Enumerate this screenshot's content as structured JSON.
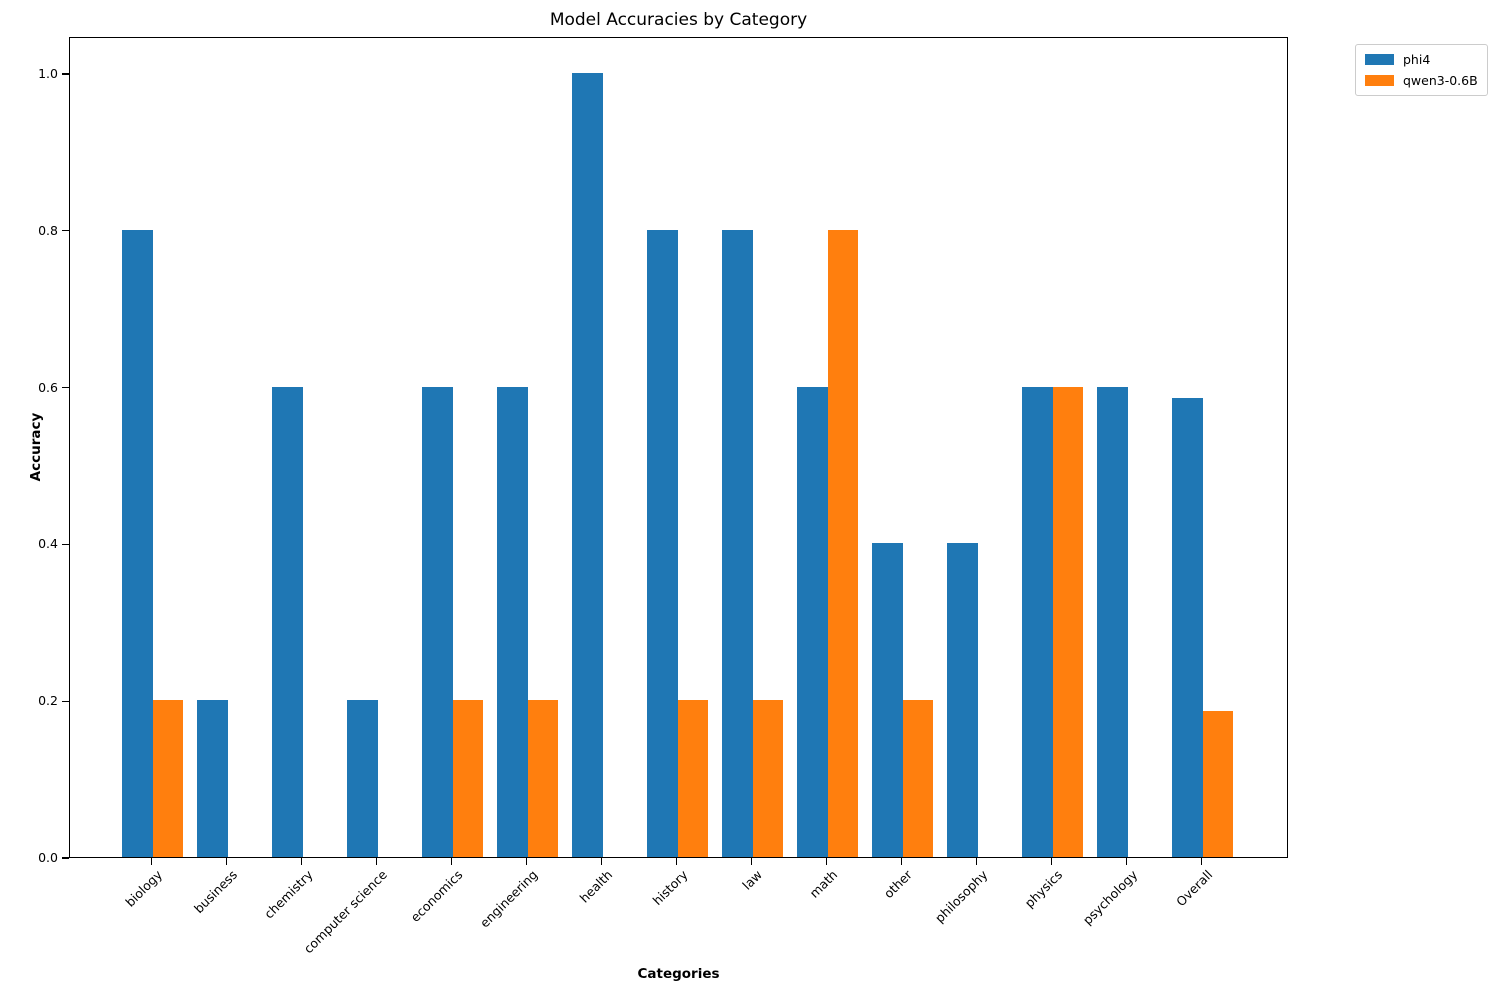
{
  "chart_data": {
    "type": "bar",
    "title": "Model Accuracies by Category",
    "xlabel": "Categories",
    "ylabel": "Accuracy",
    "categories": [
      "biology",
      "business",
      "chemistry",
      "computer science",
      "economics",
      "engineering",
      "health",
      "history",
      "law",
      "math",
      "other",
      "philosophy",
      "physics",
      "psychology",
      "Overall"
    ],
    "series": [
      {
        "name": "phi4",
        "color": "#1f77b4",
        "values": [
          0.8,
          0.2,
          0.6,
          0.2,
          0.6,
          0.6,
          1.0,
          0.8,
          0.8,
          0.6,
          0.4,
          0.4,
          0.6,
          0.6,
          0.586
        ]
      },
      {
        "name": "qwen3-0.6B",
        "color": "#ff7f0e",
        "values": [
          0.2,
          0.0,
          0.0,
          0.0,
          0.2,
          0.2,
          0.0,
          0.2,
          0.2,
          0.8,
          0.2,
          0.0,
          0.6,
          0.0,
          0.186
        ]
      }
    ],
    "ylim": [
      0.0,
      1.05
    ],
    "yticks": [
      0.0,
      0.2,
      0.4,
      0.6,
      0.8,
      1.0
    ],
    "ytick_labels": [
      "0.0",
      "0.2",
      "0.4",
      "0.6",
      "0.8",
      "1.0"
    ],
    "grid": false,
    "legend_position": "upper-right-outside",
    "bar_group_layout": "side-by-side"
  }
}
